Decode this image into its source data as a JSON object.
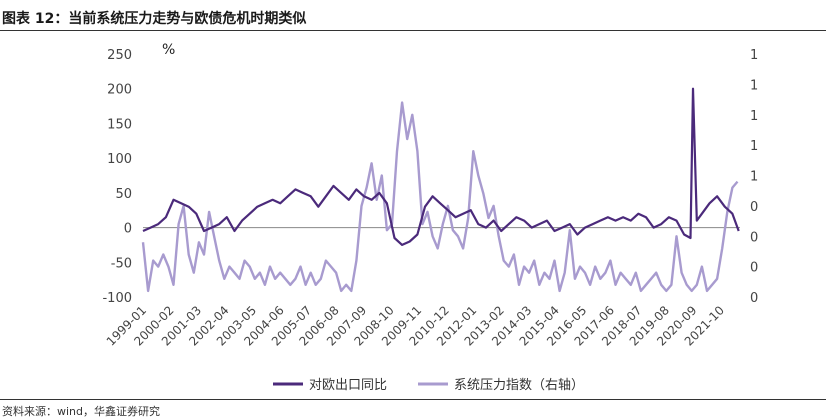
{
  "header": {
    "title": "图表 12：当前系统压力走势与欧债危机时期类似"
  },
  "footer": {
    "source": "资料来源：wind，华鑫证券研究"
  },
  "chart_data": {
    "type": "line",
    "title": "",
    "unit_label": "%",
    "y_left": {
      "ticks": [
        "-100",
        "-50",
        "0",
        "50",
        "100",
        "150",
        "200",
        "250"
      ],
      "ylim": [
        -100,
        250
      ]
    },
    "y_right": {
      "ticks": [
        "0",
        "0",
        "0",
        "0",
        "1",
        "1",
        "1",
        "1",
        "1"
      ],
      "ylim": [
        -0.4,
        1.6
      ]
    },
    "x_ticks": [
      "1999-01",
      "2000-02",
      "2001-03",
      "2002-04",
      "2003-05",
      "2004-06",
      "2005-07",
      "2006-08",
      "2007-09",
      "2008-10",
      "2009-11",
      "2010-12",
      "2012-01",
      "2013-02",
      "2014-03",
      "2015-04",
      "2016-05",
      "2017-06",
      "2018-07",
      "2019-08",
      "2020-09",
      "2021-10"
    ],
    "x_range": [
      "1999-01",
      "2022-06"
    ],
    "grid": false,
    "legend_position": "bottom",
    "series": [
      {
        "name": "对欧出口同比",
        "axis": "left",
        "color": "#4b2a7b",
        "x": [
          1999.0,
          1999.3,
          1999.6,
          1999.9,
          2000.2,
          2000.5,
          2000.8,
          2001.1,
          2001.4,
          2001.7,
          2002.0,
          2002.3,
          2002.6,
          2002.9,
          2003.2,
          2003.5,
          2003.8,
          2004.1,
          2004.4,
          2004.7,
          2005.0,
          2005.3,
          2005.6,
          2005.9,
          2006.2,
          2006.5,
          2006.8,
          2007.1,
          2007.4,
          2007.7,
          2008.0,
          2008.3,
          2008.6,
          2008.9,
          2009.2,
          2009.5,
          2009.8,
          2010.1,
          2010.4,
          2010.7,
          2011.0,
          2011.3,
          2011.6,
          2011.9,
          2012.2,
          2012.5,
          2012.8,
          2013.1,
          2013.4,
          2013.7,
          2014.0,
          2014.3,
          2014.6,
          2014.9,
          2015.2,
          2015.5,
          2015.8,
          2016.1,
          2016.4,
          2016.7,
          2017.0,
          2017.3,
          2017.6,
          2017.9,
          2018.2,
          2018.5,
          2018.8,
          2019.1,
          2019.4,
          2019.7,
          2020.0,
          2020.3,
          2020.55,
          2020.65,
          2020.8,
          2021.0,
          2021.3,
          2021.6,
          2021.9,
          2022.2,
          2022.45
        ],
        "values": [
          -5,
          0,
          5,
          15,
          40,
          35,
          30,
          20,
          -5,
          0,
          5,
          15,
          -5,
          10,
          20,
          30,
          35,
          40,
          35,
          45,
          55,
          50,
          45,
          30,
          45,
          60,
          50,
          40,
          55,
          45,
          40,
          50,
          35,
          -15,
          -25,
          -20,
          -10,
          30,
          45,
          35,
          25,
          15,
          20,
          25,
          5,
          0,
          10,
          -5,
          5,
          15,
          10,
          0,
          5,
          10,
          -5,
          0,
          5,
          -10,
          0,
          5,
          10,
          15,
          10,
          15,
          10,
          20,
          15,
          0,
          5,
          15,
          10,
          -10,
          -15,
          200,
          10,
          20,
          35,
          45,
          30,
          20,
          -5
        ]
      },
      {
        "name": "系统压力指数（右轴）",
        "axis": "right",
        "color": "#a89bcf",
        "x": [
          1999.0,
          1999.2,
          1999.4,
          1999.6,
          1999.8,
          2000.0,
          2000.2,
          2000.4,
          2000.6,
          2000.8,
          2001.0,
          2001.2,
          2001.4,
          2001.6,
          2001.8,
          2002.0,
          2002.2,
          2002.4,
          2002.6,
          2002.8,
          2003.0,
          2003.2,
          2003.4,
          2003.6,
          2003.8,
          2004.0,
          2004.2,
          2004.4,
          2004.6,
          2004.8,
          2005.0,
          2005.2,
          2005.4,
          2005.6,
          2005.8,
          2006.0,
          2006.2,
          2006.4,
          2006.6,
          2006.8,
          2007.0,
          2007.2,
          2007.4,
          2007.6,
          2007.8,
          2008.0,
          2008.2,
          2008.4,
          2008.6,
          2008.8,
          2009.0,
          2009.2,
          2009.4,
          2009.6,
          2009.8,
          2010.0,
          2010.2,
          2010.4,
          2010.6,
          2010.8,
          2011.0,
          2011.2,
          2011.4,
          2011.6,
          2011.8,
          2012.0,
          2012.2,
          2012.4,
          2012.6,
          2012.8,
          2013.0,
          2013.2,
          2013.4,
          2013.6,
          2013.8,
          2014.0,
          2014.2,
          2014.4,
          2014.6,
          2014.8,
          2015.0,
          2015.2,
          2015.4,
          2015.6,
          2015.8,
          2016.0,
          2016.2,
          2016.4,
          2016.6,
          2016.8,
          2017.0,
          2017.2,
          2017.4,
          2017.6,
          2017.8,
          2018.0,
          2018.2,
          2018.4,
          2018.6,
          2018.8,
          2019.0,
          2019.2,
          2019.4,
          2019.6,
          2019.8,
          2020.0,
          2020.2,
          2020.4,
          2020.6,
          2020.8,
          2021.0,
          2021.2,
          2021.4,
          2021.6,
          2021.8,
          2022.0,
          2022.2,
          2022.4
        ],
        "values": [
          0.05,
          -0.35,
          -0.1,
          -0.15,
          -0.05,
          -0.15,
          -0.3,
          0.2,
          0.35,
          -0.05,
          -0.2,
          0.05,
          -0.05,
          0.3,
          0.1,
          -0.1,
          -0.25,
          -0.15,
          -0.2,
          -0.25,
          -0.1,
          -0.15,
          -0.25,
          -0.2,
          -0.3,
          -0.15,
          -0.25,
          -0.2,
          -0.25,
          -0.3,
          -0.25,
          -0.15,
          -0.3,
          -0.2,
          -0.3,
          -0.25,
          -0.1,
          -0.15,
          -0.2,
          -0.35,
          -0.3,
          -0.35,
          -0.1,
          0.35,
          0.5,
          0.7,
          0.4,
          0.6,
          0.15,
          0.2,
          0.8,
          1.2,
          0.9,
          1.1,
          0.8,
          0.2,
          0.3,
          0.1,
          0.0,
          0.2,
          0.35,
          0.15,
          0.1,
          0.0,
          0.25,
          0.8,
          0.6,
          0.45,
          0.25,
          0.35,
          0.1,
          -0.1,
          -0.15,
          -0.05,
          -0.3,
          -0.15,
          -0.2,
          -0.1,
          -0.3,
          -0.2,
          -0.25,
          -0.1,
          -0.35,
          -0.2,
          0.15,
          -0.25,
          -0.15,
          -0.2,
          -0.3,
          -0.15,
          -0.25,
          -0.2,
          -0.1,
          -0.3,
          -0.2,
          -0.25,
          -0.3,
          -0.2,
          -0.35,
          -0.3,
          -0.25,
          -0.2,
          -0.3,
          -0.35,
          -0.3,
          0.1,
          -0.2,
          -0.3,
          -0.35,
          -0.3,
          -0.15,
          -0.35,
          -0.3,
          -0.25,
          0.0,
          0.3,
          0.5,
          0.55
        ]
      }
    ]
  }
}
